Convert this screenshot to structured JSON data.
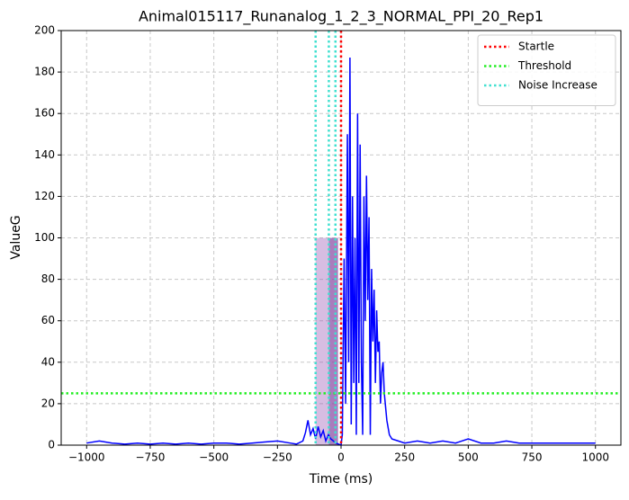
{
  "chart_data": {
    "type": "line",
    "title": "Animal015117_Runanalog_1_2_3_NORMAL_PPI_20_Rep1",
    "x_label": "Time (ms)",
    "y_label": "ValueG",
    "xlim": [
      -1100,
      1100
    ],
    "ylim": [
      0,
      200
    ],
    "xticks": [
      {
        "value": -1000,
        "label": "−1000"
      },
      {
        "value": -750,
        "label": "−750"
      },
      {
        "value": -500,
        "label": "−500"
      },
      {
        "value": -250,
        "label": "−250"
      },
      0,
      250,
      500,
      750,
      1000
    ],
    "yticks": [
      0,
      20,
      40,
      60,
      80,
      100,
      120,
      140,
      160,
      180,
      200
    ],
    "grid": true,
    "legend": "upper right",
    "x": [
      -1000,
      -950,
      -900,
      -850,
      -800,
      -750,
      -700,
      -650,
      -600,
      -550,
      -500,
      -450,
      -400,
      -350,
      -300,
      -250,
      -200,
      -175,
      -150,
      -140,
      -130,
      -120,
      -110,
      -100,
      -90,
      -80,
      -70,
      -60,
      -50,
      -40,
      -30,
      -20,
      -10,
      0,
      5,
      12,
      18,
      25,
      30,
      35,
      40,
      45,
      50,
      55,
      60,
      65,
      70,
      75,
      80,
      85,
      90,
      95,
      100,
      105,
      110,
      115,
      120,
      125,
      130,
      135,
      140,
      145,
      150,
      155,
      160,
      165,
      170,
      180,
      190,
      200,
      225,
      250,
      300,
      350,
      400,
      450,
      500,
      550,
      600,
      650,
      700,
      750,
      800,
      850,
      900,
      950,
      1000
    ],
    "series": [
      {
        "color": "#0000ff",
        "values": [
          1,
          2,
          1,
          0.5,
          1,
          0.5,
          1,
          0.5,
          1,
          0.5,
          1,
          1,
          0.5,
          1,
          1.5,
          2,
          1,
          0.5,
          2,
          6,
          12,
          5,
          8,
          3,
          9,
          4,
          7,
          2,
          5,
          3,
          2,
          1,
          0.5,
          0,
          5,
          90,
          20,
          150,
          40,
          187,
          10,
          120,
          30,
          100,
          5,
          160,
          30,
          145,
          40,
          5,
          120,
          60,
          130,
          70,
          110,
          5,
          85,
          50,
          75,
          30,
          65,
          45,
          50,
          20,
          35,
          40,
          25,
          12,
          5,
          3,
          2,
          1,
          2,
          1,
          2,
          1,
          3,
          1,
          1,
          2,
          1,
          1,
          1,
          1,
          1,
          1,
          1
        ]
      }
    ],
    "spans": [
      {
        "x0": -100,
        "x1": -12,
        "y0": 0,
        "y1": 100,
        "color": "#9b59b6",
        "opacity": 0.4
      },
      {
        "x0": -48,
        "x1": -12,
        "y0": 0,
        "y1": 100,
        "color": "#7d3c98",
        "opacity": 0.5
      }
    ],
    "reference_lines": [
      {
        "name": "Startle",
        "color": "#ff0000",
        "orientation": "vertical",
        "values": [
          0
        ]
      },
      {
        "name": "Threshold",
        "color": "#22ee22",
        "orientation": "horizontal",
        "values": [
          25
        ]
      },
      {
        "name": "Noise Increase",
        "color": "#40e0d0",
        "orientation": "vertical",
        "values": [
          -100,
          -48,
          -22
        ]
      }
    ]
  }
}
